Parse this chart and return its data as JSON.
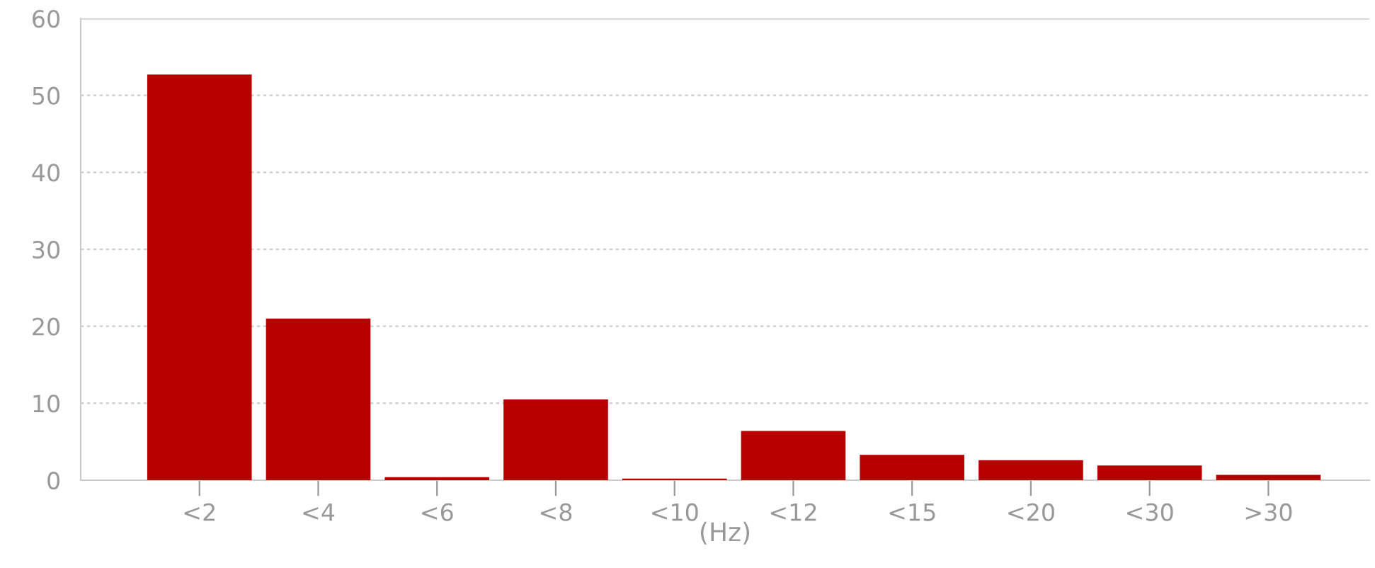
{
  "chart_data": {
    "type": "bar",
    "xlabel": "(Hz)",
    "categories": [
      "<2",
      "<4",
      "<6",
      "<8",
      "<10",
      "<12",
      "<15",
      "<20",
      "<30",
      ">30"
    ],
    "values": [
      52.7,
      21.0,
      0.4,
      10.5,
      0.2,
      6.4,
      3.3,
      2.6,
      1.9,
      0.7
    ],
    "color": "#b70000",
    "ylim": [
      0,
      60
    ],
    "yticks": [
      0,
      10,
      20,
      30,
      40,
      50,
      60
    ],
    "grid": "y"
  }
}
